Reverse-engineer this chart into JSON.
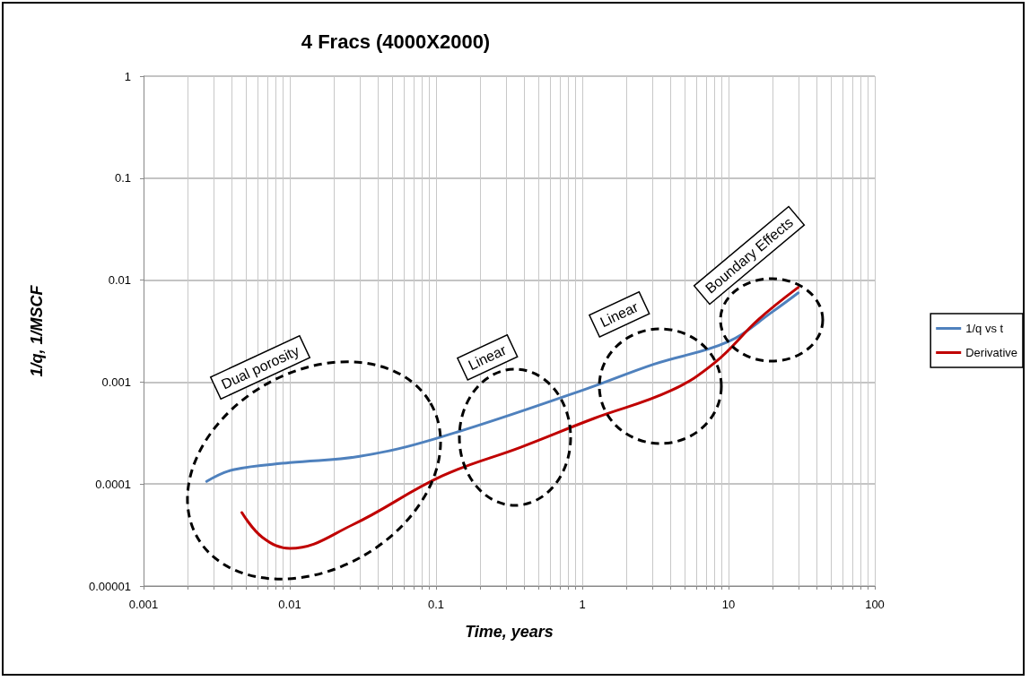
{
  "chart_data": {
    "type": "line",
    "title": "4 Fracs (4000X2000)",
    "xlabel": "Time, years",
    "ylabel": "1/q, 1/MSCF",
    "log": "xy",
    "grid": true,
    "legend": "right",
    "marker": "none",
    "line_style": "solid",
    "xlim": [
      0.001,
      100
    ],
    "ylim": [
      1e-05,
      1
    ],
    "xticks": [
      0.001,
      {
        "value": 0.002,
        "label": null
      },
      {
        "value": 0.003,
        "label": null
      },
      {
        "value": 0.004,
        "label": null
      },
      {
        "value": 0.005,
        "label": null
      },
      {
        "value": 0.006,
        "label": null
      },
      {
        "value": 0.007,
        "label": null
      },
      {
        "value": 0.008,
        "label": null
      },
      {
        "value": 0.009,
        "label": null
      },
      0.01,
      {
        "value": 0.02,
        "label": null
      },
      {
        "value": 0.03,
        "label": null
      },
      {
        "value": 0.04,
        "label": null
      },
      {
        "value": 0.05,
        "label": null
      },
      {
        "value": 0.06,
        "label": null
      },
      {
        "value": 0.07,
        "label": null
      },
      {
        "value": 0.08,
        "label": null
      },
      {
        "value": 0.09,
        "label": null
      },
      0.1,
      {
        "value": 0.2,
        "label": null
      },
      {
        "value": 0.3,
        "label": null
      },
      {
        "value": 0.4,
        "label": null
      },
      {
        "value": 0.5,
        "label": null
      },
      {
        "value": 0.6,
        "label": null
      },
      {
        "value": 0.7,
        "label": null
      },
      {
        "value": 0.8,
        "label": null
      },
      {
        "value": 0.9,
        "label": null
      },
      1,
      {
        "value": 2,
        "label": null
      },
      {
        "value": 3,
        "label": null
      },
      {
        "value": 4,
        "label": null
      },
      {
        "value": 5,
        "label": null
      },
      {
        "value": 6,
        "label": null
      },
      {
        "value": 7,
        "label": null
      },
      {
        "value": 8,
        "label": null
      },
      {
        "value": 9,
        "label": null
      },
      10,
      {
        "value": 20,
        "label": null
      },
      {
        "value": 30,
        "label": null
      },
      {
        "value": 40,
        "label": null
      },
      {
        "value": 50,
        "label": null
      },
      {
        "value": 60,
        "label": null
      },
      {
        "value": 70,
        "label": null
      },
      {
        "value": 80,
        "label": null
      },
      {
        "value": 90,
        "label": null
      },
      100
    ],
    "yticks": [
      {
        "value": 1e-05,
        "label": "0.00001"
      },
      0.0001,
      0.001,
      0.01,
      0.1,
      1
    ],
    "annotations": [
      "Dual porosity",
      "Linear",
      "Linear",
      "Boundary Effects"
    ],
    "series": [
      {
        "name": "1/q vs t",
        "color": "#4f81bd",
        "x": [
          0.0027,
          0.0041,
          0.01,
          0.03,
          0.1,
          1,
          3.1,
          10,
          20,
          30
        ],
        "values": [
          0.000106,
          0.000138,
          0.000162,
          0.000187,
          0.00028,
          0.00083,
          0.0015,
          0.0025,
          0.0049,
          0.0075
        ]
      },
      {
        "name": "Derivative",
        "color": "#c00000",
        "x": [
          0.0047,
          0.0065,
          0.01,
          0.027,
          0.11,
          0.38,
          1.2,
          4,
          8.1,
          16,
          30
        ],
        "values": [
          5.25e-05,
          3e-05,
          2.34e-05,
          4e-05,
          0.00012,
          0.00023,
          0.00044,
          0.00082,
          0.00156,
          0.0041,
          0.0085
        ]
      }
    ]
  }
}
